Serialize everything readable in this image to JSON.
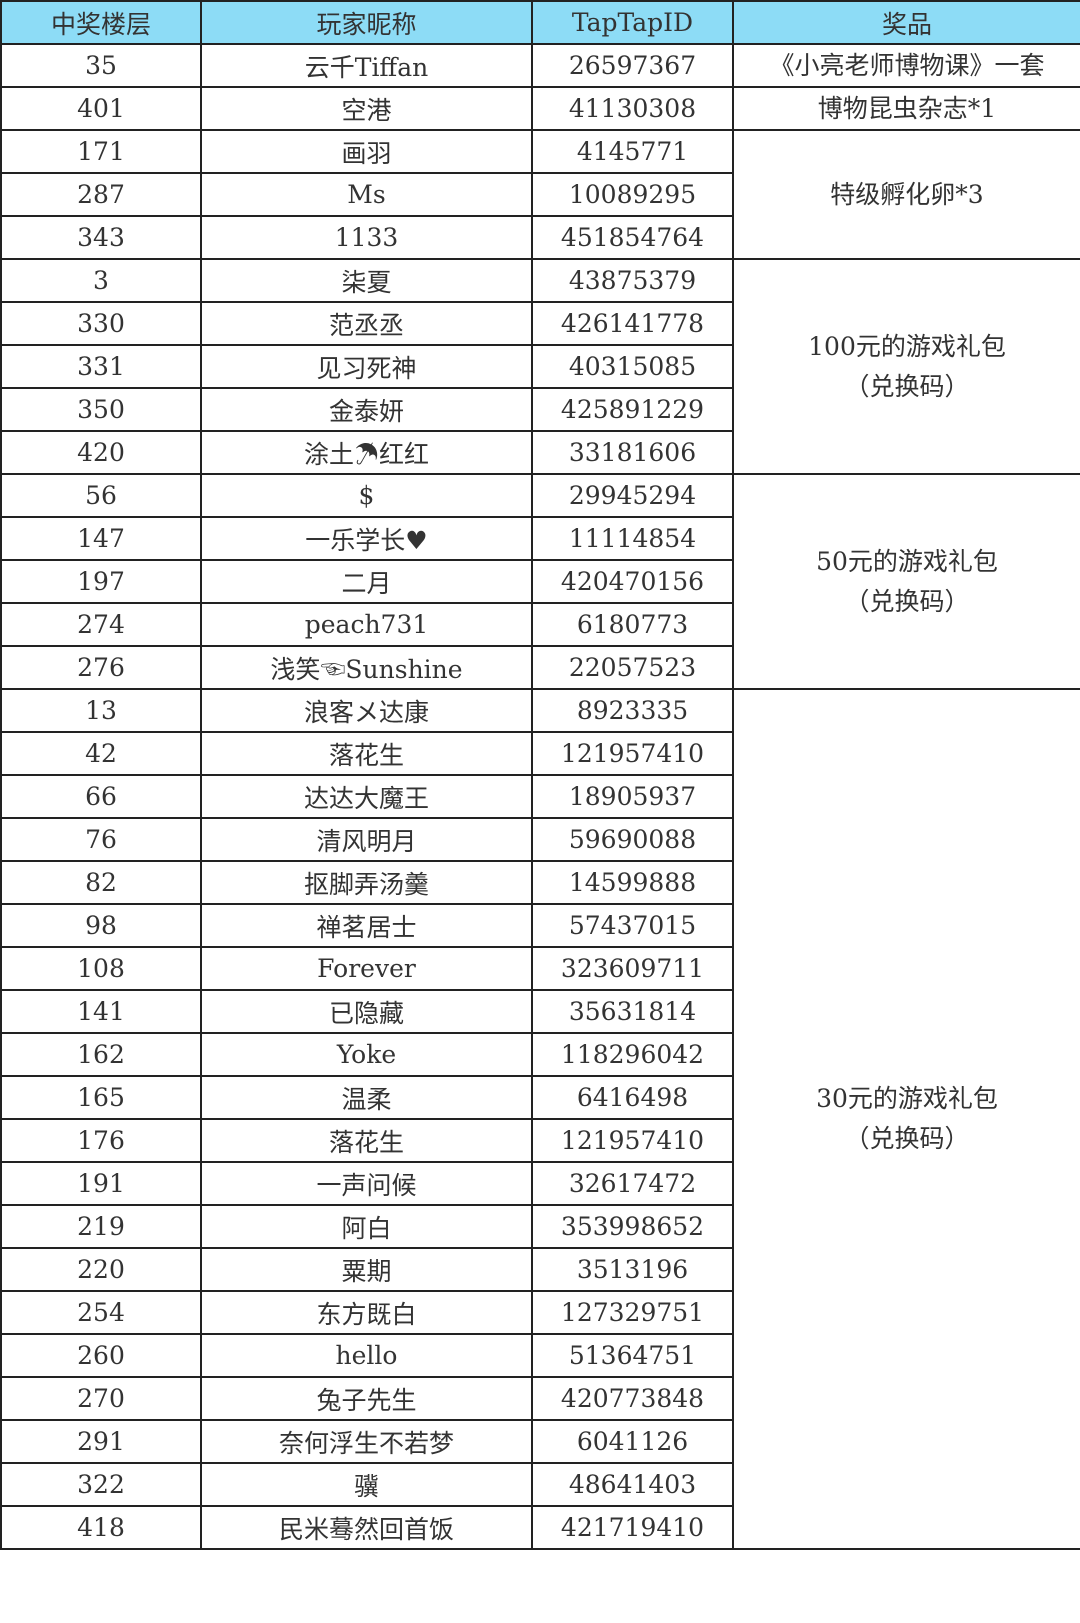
{
  "header": {
    "floor": "中奖楼层",
    "nickname": "玩家昵称",
    "id": "TapTapID",
    "prize": "奖品"
  },
  "colors": {
    "header_bg": "#8ddcf6",
    "border": "#222222"
  },
  "groups": [
    {
      "prize_lines": [
        "《小亮老师博物课》一套"
      ],
      "rows": [
        [
          "35",
          "云千Tiffan",
          "26597367"
        ]
      ]
    },
    {
      "prize_lines": [
        "博物昆虫杂志*1"
      ],
      "rows": [
        [
          "401",
          "空港",
          "41130308"
        ]
      ]
    },
    {
      "prize_lines": [
        "特级孵化卵*3"
      ],
      "rows": [
        [
          "171",
          "画羽",
          "4145771"
        ],
        [
          "287",
          "Ms",
          "10089295"
        ],
        [
          "343",
          "1133",
          "451854764"
        ]
      ]
    },
    {
      "prize_lines": [
        "100元的游戏礼包",
        "（兑换码）"
      ],
      "rows": [
        [
          "3",
          "柒夏",
          "43875379"
        ],
        [
          "330",
          "范丞丞",
          "426141778"
        ],
        [
          "331",
          "见习死神",
          "40315085"
        ],
        [
          "350",
          "金泰妍",
          "425891229"
        ],
        [
          "420",
          "涂土☂红红",
          "33181606"
        ]
      ]
    },
    {
      "prize_lines": [
        "50元的游戏礼包",
        "（兑换码）"
      ],
      "rows": [
        [
          "56",
          "$",
          "29945294"
        ],
        [
          "147",
          "一乐学长♥",
          "11114854"
        ],
        [
          "197",
          "二月",
          "420470156"
        ],
        [
          "274",
          "peach731",
          "6180773"
        ],
        [
          "276",
          "浅笑☜Sunshine",
          "22057523"
        ]
      ]
    },
    {
      "prize_lines": [
        "30元的游戏礼包",
        "（兑换码）"
      ],
      "rows": [
        [
          "13",
          "浪客メ达康",
          "8923335"
        ],
        [
          "42",
          "落花生",
          "121957410"
        ],
        [
          "66",
          "达达大魔王",
          "18905937"
        ],
        [
          "76",
          "清风明月",
          "59690088"
        ],
        [
          "82",
          "抠脚弄汤羹",
          "14599888"
        ],
        [
          "98",
          "禅茗居士",
          "57437015"
        ],
        [
          "108",
          "Forever",
          "323609711"
        ],
        [
          "141",
          "已隐藏",
          "35631814"
        ],
        [
          "162",
          "Yoke",
          "118296042"
        ],
        [
          "165",
          "温柔",
          "6416498"
        ],
        [
          "176",
          "落花生",
          "121957410"
        ],
        [
          "191",
          "一声问候",
          "32617472"
        ],
        [
          "219",
          "阿白",
          "353998652"
        ],
        [
          "220",
          "粟期",
          "3513196"
        ],
        [
          "254",
          "东方既白",
          "127329751"
        ],
        [
          "260",
          "hello",
          "51364751"
        ],
        [
          "270",
          "兔子先生",
          "420773848"
        ],
        [
          "291",
          "奈何浮生不若梦",
          "6041126"
        ],
        [
          "322",
          "骥",
          "48641403"
        ],
        [
          "418",
          "民米蓦然回首饭",
          "421719410"
        ]
      ]
    }
  ]
}
